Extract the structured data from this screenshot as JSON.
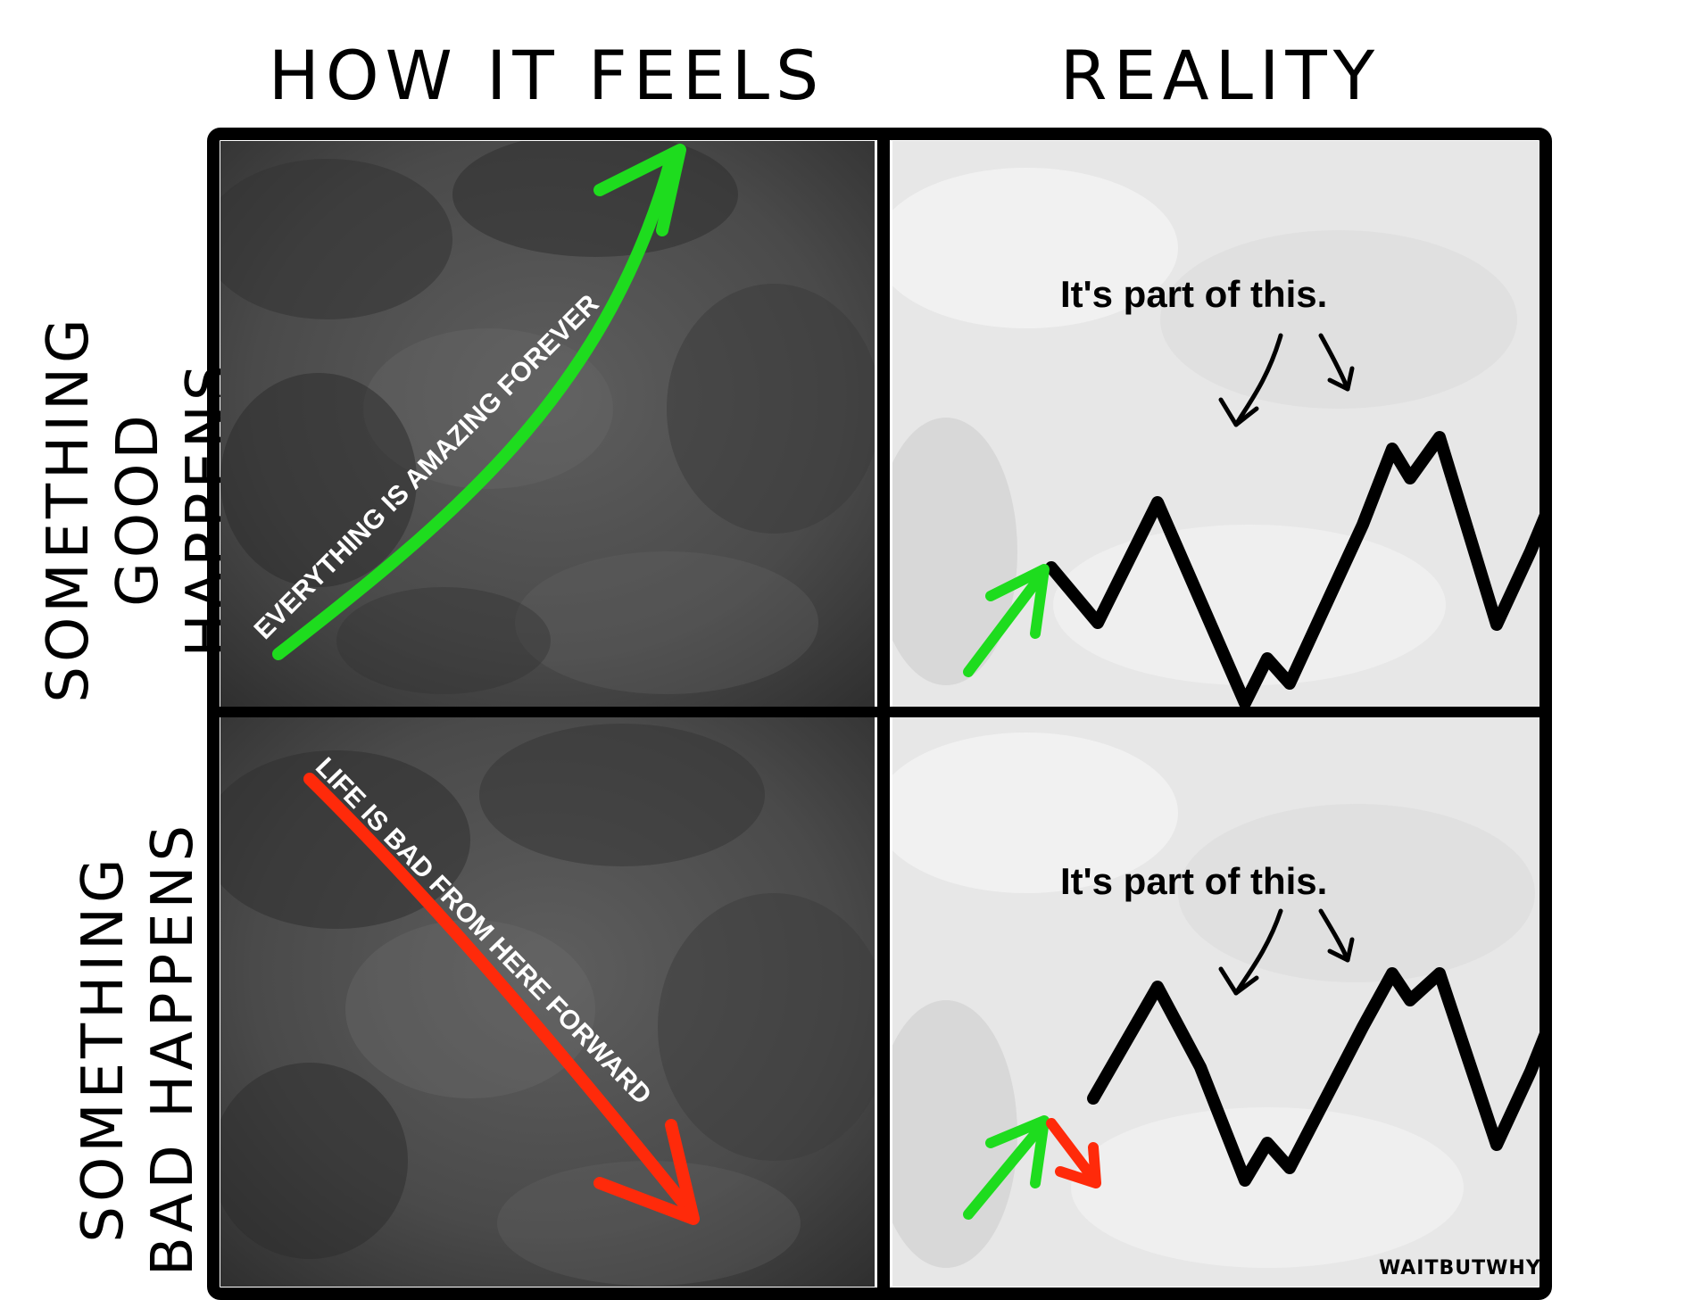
{
  "headers": {
    "left": "HOW IT FEELS",
    "right": "REALITY"
  },
  "rows": {
    "top": {
      "line1": "SOMETHING",
      "line2": "GOOD HAPPENS"
    },
    "bottom": {
      "line1": "SOMETHING",
      "line2": "BAD HAPPENS"
    }
  },
  "feels": {
    "good_arrow_text": "EVERYTHING IS AMAZING FOREVER",
    "bad_arrow_text": "LIFE IS BAD FROM HERE FORWARD"
  },
  "reality": {
    "caption_top": "It's part of this.",
    "caption_bottom": "It's part of this."
  },
  "signature": "WAITBUTWHY",
  "colors": {
    "frame": "#000000",
    "dark_panel": "#4d4d4d",
    "light_panel": "#e7e7e7",
    "good_arrow": "#1edc1e",
    "bad_arrow": "#ff2a0a",
    "line": "#000000"
  }
}
